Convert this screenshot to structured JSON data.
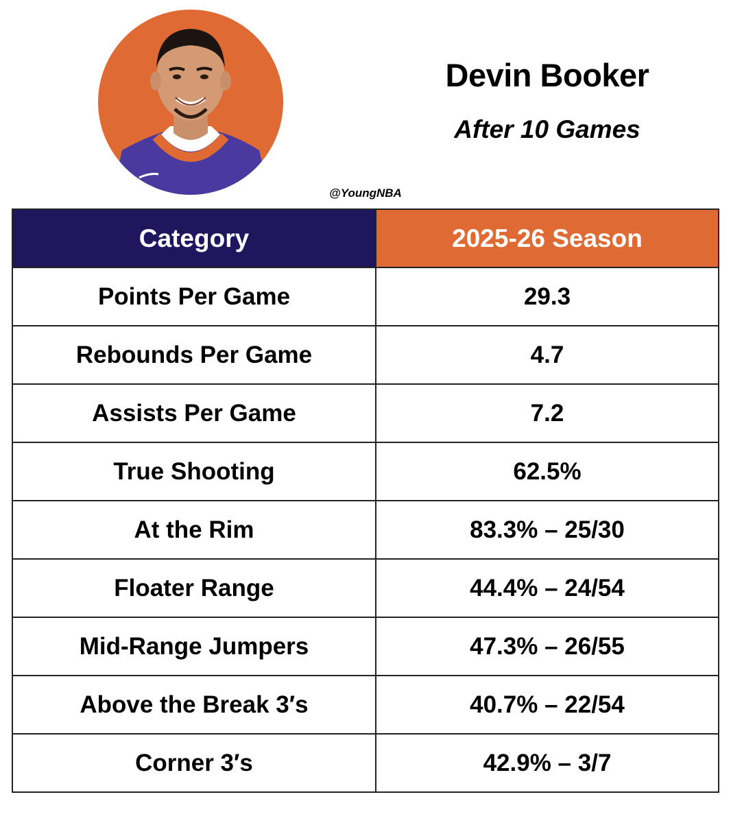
{
  "colors": {
    "accent_orange": "#e06a33",
    "header_navy": "#1f165e",
    "jersey_purple": "#4a3aa0"
  },
  "header": {
    "avatar_icon": "player-headshot",
    "player_name": "Devin Booker",
    "subtitle": "After 10 Games",
    "handle": "@YoungNBA"
  },
  "table": {
    "columns": [
      "Category",
      "2025-26 Season"
    ],
    "rows": [
      {
        "category": "Points Per Game",
        "value": "29.3"
      },
      {
        "category": "Rebounds Per Game",
        "value": "4.7"
      },
      {
        "category": "Assists Per Game",
        "value": "7.2"
      },
      {
        "category": "True Shooting",
        "value": "62.5%"
      },
      {
        "category": "At the Rim",
        "value": "83.3% – 25/30"
      },
      {
        "category": "Floater Range",
        "value": "44.4% – 24/54"
      },
      {
        "category": "Mid-Range Jumpers",
        "value": "47.3% – 26/55"
      },
      {
        "category": "Above the Break 3′s",
        "value": "40.7% – 22/54"
      },
      {
        "category": "Corner 3′s",
        "value": "42.9% – 3/7"
      }
    ]
  }
}
